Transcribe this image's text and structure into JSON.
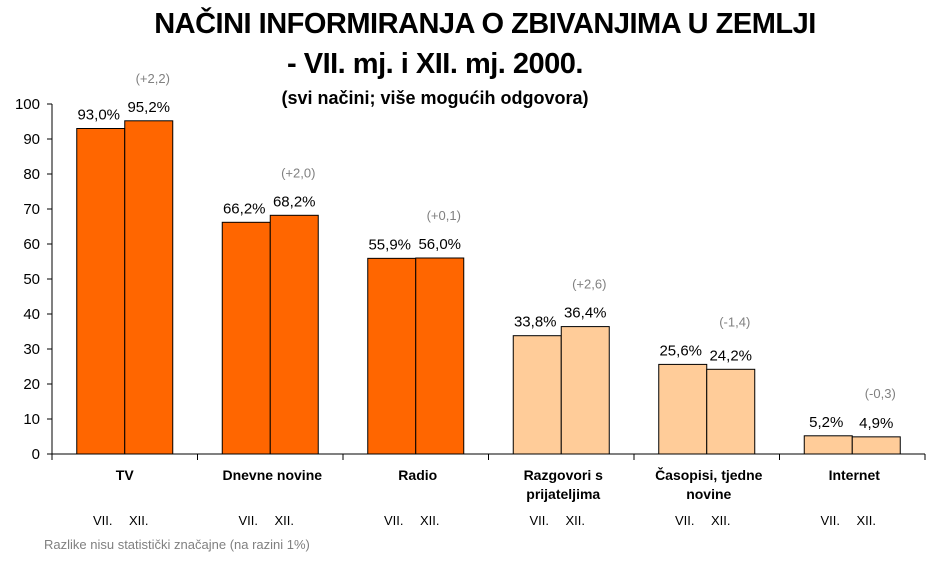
{
  "header": {
    "title_line1": "NAČINI INFORMIRANJA O ZBIVANJIMA U ZEMLJI",
    "title_line2": "- VII. mj. i XII. mj. 2000.",
    "subtitle": "(svi načini; više mogućih odgovora)"
  },
  "footnote": "Razlike nisu statistički značajne (na razini 1%)",
  "chart_data": {
    "type": "bar",
    "title": "NAČINI INFORMIRANJA O ZBIVANJIMA U ZEMLJI - VII. mj. i XII. mj. 2000.",
    "subtitle": "(svi načini; više mogućih odgovora)",
    "categories": [
      [
        "TV"
      ],
      [
        "Dnevne  novine"
      ],
      [
        "Radio"
      ],
      [
        "Razgovori s",
        "prijateljima"
      ],
      [
        "Časopisi, tjedne",
        "novine"
      ],
      [
        "Internet"
      ]
    ],
    "series": [
      {
        "name": "VII.",
        "values": [
          93.0,
          66.2,
          55.9,
          33.8,
          25.6,
          5.2
        ],
        "labels": [
          "93,0%",
          "66,2%",
          "55,9%",
          "33,8%",
          "25,6%",
          "5,2%"
        ]
      },
      {
        "name": "XII.",
        "values": [
          95.2,
          68.2,
          56.0,
          36.4,
          24.2,
          4.9
        ],
        "labels": [
          "95,2%",
          "68,2%",
          "56,0%",
          "36,4%",
          "24,2%",
          "4,9%"
        ]
      }
    ],
    "differences": [
      "(+2,2)",
      "(+2,0)",
      "(+0,1)",
      "(+2,6)",
      "(-1,4)",
      "(-0,3)"
    ],
    "bar_colors": [
      "#FF6600",
      "#FF6600",
      "#FF6600",
      "#FFCC99",
      "#FFCC99",
      "#FFCC99"
    ],
    "bar_outline": "#000000",
    "y_ticks": [
      0,
      10,
      20,
      30,
      40,
      50,
      60,
      70,
      80,
      90,
      100
    ],
    "ylim": [
      0,
      100
    ],
    "grid": false,
    "legend": "none"
  }
}
